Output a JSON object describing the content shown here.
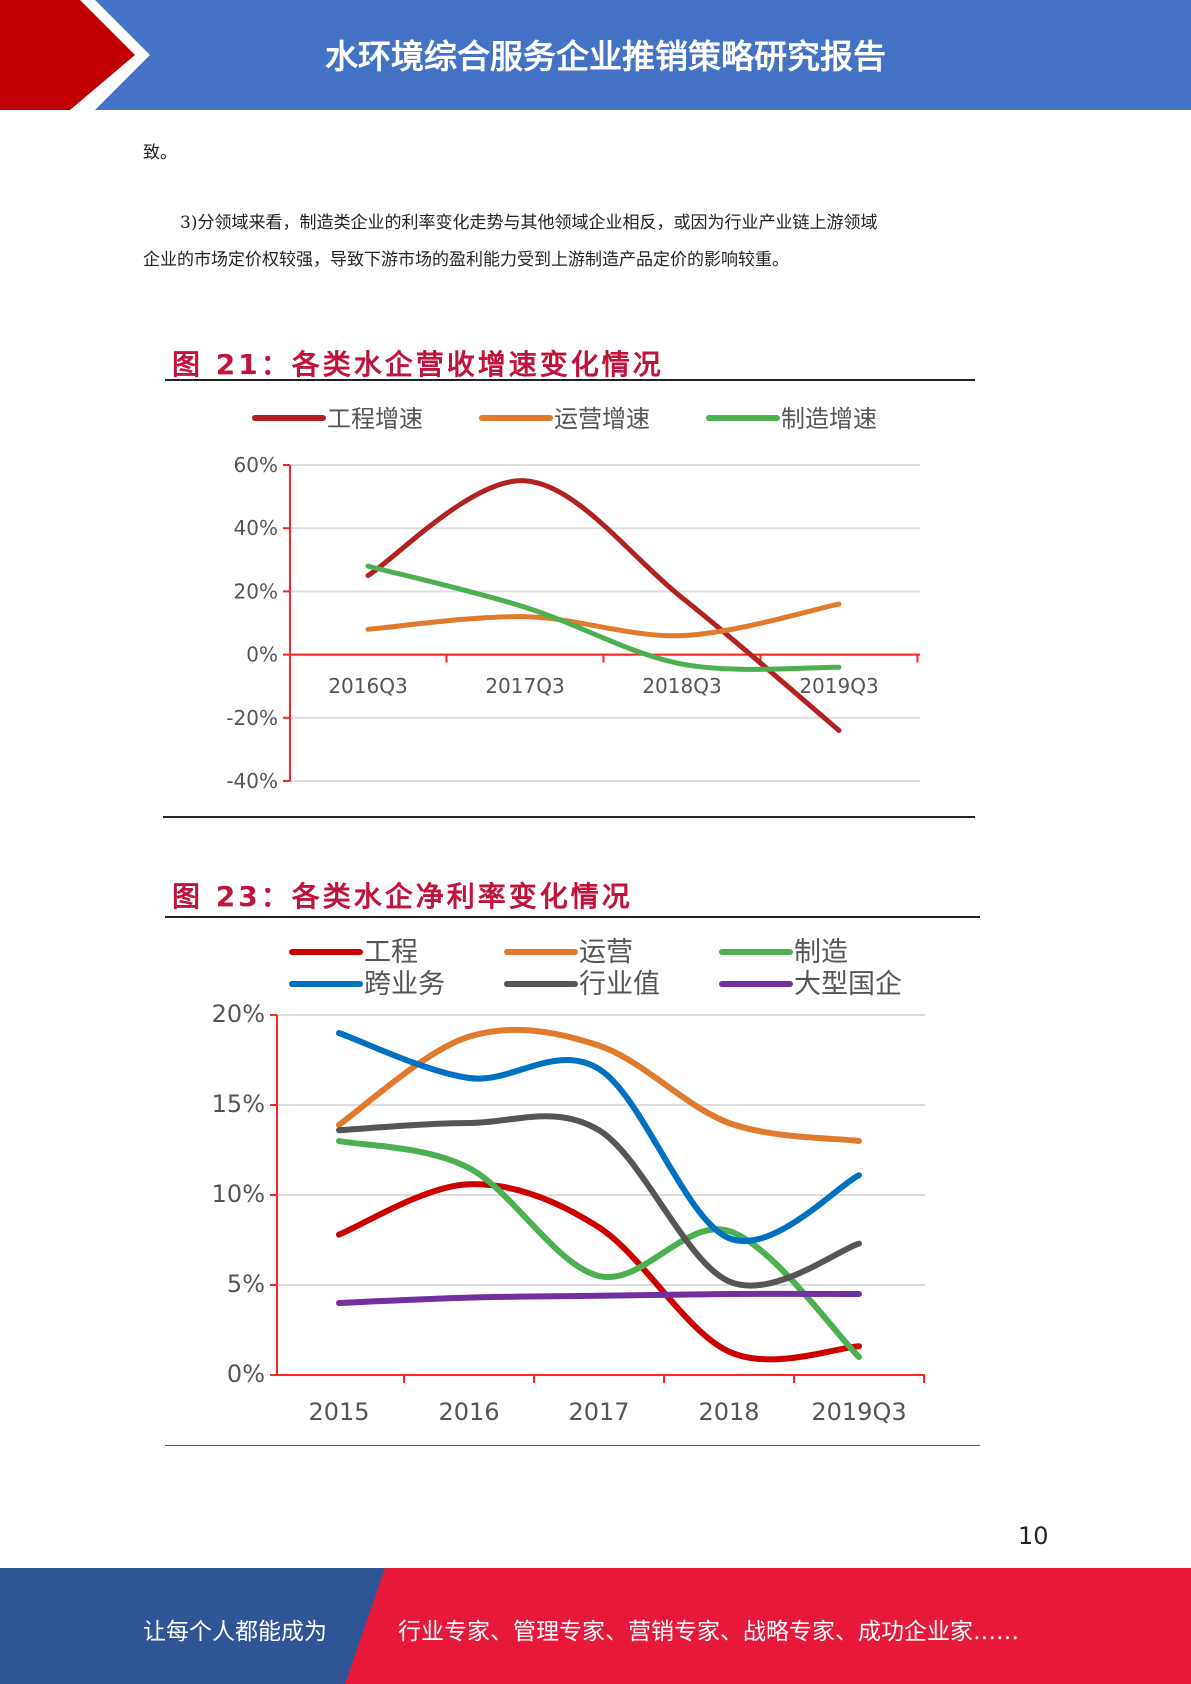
{
  "header": {
    "title": "水环境综合服务企业推销策略研究报告"
  },
  "body": {
    "p1": "致。",
    "p2a": "3)分领域来看，制造类企业的利率变化走势与其他领域企业相反，或因为行业产业链上游领域",
    "p2b": "企业的市场定价权较强，导致下游市场的盈利能力受到上游制造产品定价的影响较重。"
  },
  "page_number": "10",
  "footer": {
    "left": "让每个人都能成为",
    "right": "行业专家、管理专家、营销专家、战略专家、成功企业家……"
  },
  "chart_data": [
    {
      "type": "line",
      "title": "图 21：各类水企营收增速变化情况",
      "categories": [
        "2016Q3",
        "2017Q3",
        "2018Q3",
        "2019Q3"
      ],
      "yticks": [
        "60%",
        "40%",
        "20%",
        "0%",
        "-20%",
        "-40%"
      ],
      "ylim": [
        -40,
        60
      ],
      "legend": "top",
      "series": [
        {
          "name": "工程增速",
          "color": "#b22222",
          "values": [
            25,
            55,
            18,
            -24
          ]
        },
        {
          "name": "运营增速",
          "color": "#e07b2e",
          "values": [
            8,
            12,
            6,
            16
          ]
        },
        {
          "name": "制造增速",
          "color": "#4caf50",
          "values": [
            28,
            15,
            -3,
            -4
          ]
        }
      ]
    },
    {
      "type": "line",
      "title": "图 23：各类水企净利率变化情况",
      "categories": [
        "2015",
        "2016",
        "2017",
        "2018",
        "2019Q3"
      ],
      "yticks": [
        "20%",
        "15%",
        "10%",
        "5%",
        "0%"
      ],
      "ylim": [
        0,
        20
      ],
      "legend": "top",
      "series": [
        {
          "name": "工程",
          "color": "#cc0000",
          "values": [
            7.8,
            10.6,
            8.2,
            1.3,
            1.6
          ]
        },
        {
          "name": "运营",
          "color": "#e07b2e",
          "values": [
            13.9,
            18.8,
            18.3,
            14.0,
            13.0
          ]
        },
        {
          "name": "制造",
          "color": "#4caf50",
          "values": [
            13.0,
            11.5,
            5.5,
            8.0,
            1.0
          ]
        },
        {
          "name": "跨业务",
          "color": "#0070c0",
          "values": [
            19.0,
            16.5,
            17.0,
            7.6,
            11.1
          ]
        },
        {
          "name": "行业值",
          "color": "#555555",
          "values": [
            13.6,
            14.0,
            13.6,
            5.2,
            7.3
          ]
        },
        {
          "name": "大型国企",
          "color": "#7030a0",
          "values": [
            4.0,
            4.3,
            4.4,
            4.5,
            4.5
          ]
        }
      ]
    }
  ]
}
